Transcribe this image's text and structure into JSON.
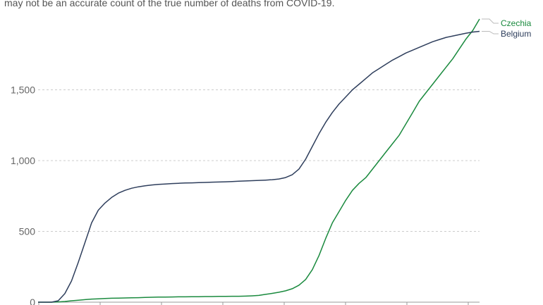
{
  "note": "may not be an accurate count of the true number of deaths from COVID-19.",
  "chart_data": {
    "type": "line",
    "ylim": [
      0,
      2000
    ],
    "y_ticks": [
      0,
      500,
      1000,
      1500
    ],
    "y_tick_labels": [
      "0",
      "500",
      "1,000",
      "1,500"
    ],
    "grid": "horizontal dashed",
    "legend": "right, at line ends",
    "series": [
      {
        "name": "Czechia",
        "color": "#1a8a3e",
        "values": [
          0,
          0,
          0,
          2,
          5,
          10,
          14,
          18,
          22,
          24,
          26,
          28,
          29,
          30,
          31,
          32,
          34,
          35,
          36,
          36,
          37,
          38,
          38,
          39,
          39,
          40,
          40,
          41,
          41,
          42,
          42,
          43,
          45,
          48,
          55,
          62,
          70,
          80,
          95,
          120,
          160,
          230,
          330,
          450,
          560,
          640,
          720,
          790,
          840,
          880,
          940,
          1000,
          1060,
          1120,
          1180,
          1260,
          1340,
          1420,
          1480,
          1540,
          1600,
          1660,
          1720,
          1790,
          1860,
          1920,
          2000
        ]
      },
      {
        "name": "Belgium",
        "color": "#2e3e5c",
        "values": [
          0,
          0,
          0,
          10,
          60,
          150,
          280,
          420,
          560,
          650,
          700,
          740,
          770,
          790,
          805,
          815,
          822,
          828,
          832,
          835,
          838,
          840,
          842,
          843,
          845,
          846,
          848,
          849,
          850,
          852,
          854,
          856,
          858,
          860,
          862,
          865,
          870,
          880,
          900,
          940,
          1010,
          1100,
          1190,
          1270,
          1340,
          1400,
          1450,
          1500,
          1540,
          1580,
          1620,
          1650,
          1680,
          1710,
          1735,
          1760,
          1780,
          1800,
          1820,
          1840,
          1855,
          1870,
          1880,
          1890,
          1900,
          1908,
          1913
        ]
      }
    ]
  }
}
